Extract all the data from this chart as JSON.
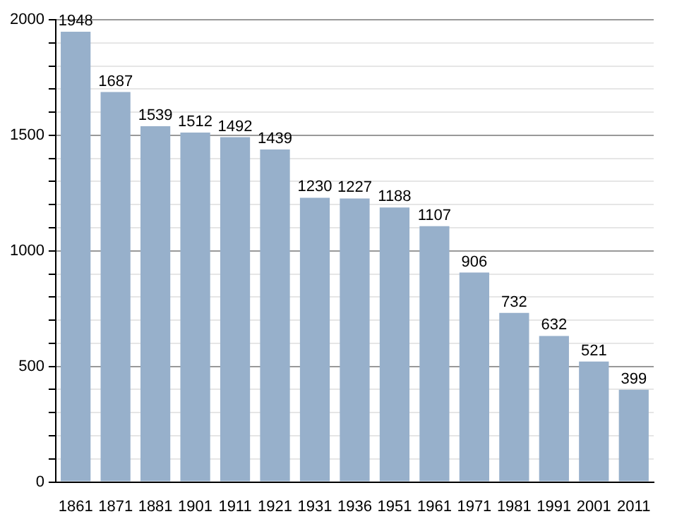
{
  "chart_data": {
    "type": "bar",
    "categories": [
      "1861",
      "1871",
      "1881",
      "1901",
      "1911",
      "1921",
      "1931",
      "1936",
      "1951",
      "1961",
      "1971",
      "1981",
      "1991",
      "2001",
      "2011"
    ],
    "values": [
      1948,
      1687,
      1539,
      1512,
      1492,
      1439,
      1230,
      1227,
      1188,
      1107,
      906,
      732,
      632,
      521,
      399
    ],
    "color": "#97b0cb",
    "ylim": [
      0,
      2000
    ],
    "yticks": [
      0,
      {
        "value": 100,
        "label": null
      },
      {
        "value": 200,
        "label": null
      },
      {
        "value": 300,
        "label": null
      },
      {
        "value": 400,
        "label": null
      },
      500,
      {
        "value": 600,
        "label": null
      },
      {
        "value": 700,
        "label": null
      },
      {
        "value": 800,
        "label": null
      },
      {
        "value": 900,
        "label": null
      },
      1000,
      {
        "value": 1100,
        "label": null
      },
      {
        "value": 1200,
        "label": null
      },
      {
        "value": 1300,
        "label": null
      },
      {
        "value": 1400,
        "label": null
      },
      1500,
      {
        "value": 1600,
        "label": null
      },
      {
        "value": 1700,
        "label": null
      },
      {
        "value": 1800,
        "label": null
      },
      {
        "value": 1900,
        "label": null
      },
      2000
    ],
    "grid": true,
    "data_labels": true
  }
}
